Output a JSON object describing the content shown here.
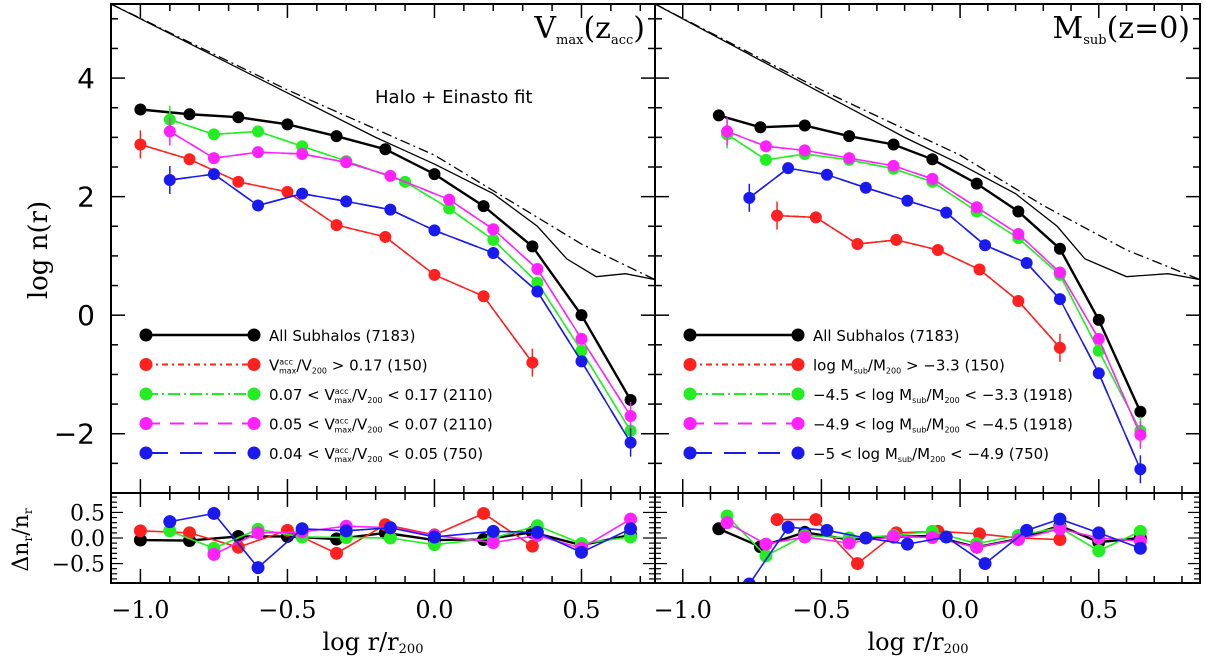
{
  "chart_data": [
    {
      "type": "line",
      "panel": "left-main",
      "title": "V_max(z_acc)",
      "annotation": "Halo + Einasto fit",
      "xlabel": "log r/r_200",
      "ylabel": "log n(r)",
      "xlim": [
        -1.1,
        0.75
      ],
      "ylim": [
        -3.0,
        5.25
      ],
      "yticks": [
        -2,
        0,
        2,
        4
      ],
      "xticks": [
        -1.0,
        -0.5,
        0.0,
        0.5
      ],
      "halo": {
        "x": [
          -1.1,
          -0.8,
          -0.5,
          -0.2,
          0.0,
          0.2,
          0.35,
          0.45,
          0.55,
          0.65,
          0.75
        ],
        "y": [
          5.25,
          4.5,
          3.75,
          3.0,
          2.55,
          2.05,
          1.5,
          0.95,
          0.65,
          0.7,
          0.6
        ]
      },
      "einasto": {
        "x": [
          -1.1,
          -0.5,
          0.0,
          0.3,
          0.5,
          0.75
        ],
        "y": [
          5.25,
          3.8,
          2.7,
          1.8,
          1.2,
          0.6
        ]
      },
      "series": [
        {
          "name": "All Subhalos (7183)",
          "color": "#000000",
          "dash": "solid",
          "x": [
            -1.0,
            -0.833,
            -0.667,
            -0.5,
            -0.333,
            -0.167,
            0.0,
            0.167,
            0.333,
            0.5,
            0.667
          ],
          "y": [
            3.47,
            3.39,
            3.34,
            3.22,
            3.02,
            2.8,
            2.38,
            1.84,
            1.16,
            0.0,
            -1.43
          ]
        },
        {
          "name": "V_max^acc/V_200 > 0.17 (150)",
          "color": "#ff2020",
          "dash": "6,4,2,4",
          "x": [
            -1.0,
            -0.833,
            -0.667,
            -0.5,
            -0.333,
            -0.167,
            0.0,
            0.167,
            0.333
          ],
          "y": [
            2.88,
            2.63,
            2.25,
            2.08,
            1.52,
            1.32,
            0.68,
            0.32,
            -0.8
          ]
        },
        {
          "name": "0.07 < V_max^acc/V_200 < 0.17 (2110)",
          "color": "#22ee22",
          "dash": "12,4,2,4",
          "x": [
            -0.9,
            -0.75,
            -0.6,
            -0.45,
            -0.3,
            -0.1,
            0.05,
            0.2,
            0.35,
            0.5,
            0.667
          ],
          "y": [
            3.3,
            3.05,
            3.1,
            2.85,
            2.6,
            2.25,
            1.8,
            1.27,
            0.55,
            -0.6,
            -1.95
          ]
        },
        {
          "name": "0.05 < V_max^acc/V_200 < 0.07 (2110)",
          "color": "#ff22ff",
          "dash": "14,10",
          "x": [
            -0.9,
            -0.75,
            -0.6,
            -0.45,
            -0.3,
            -0.15,
            0.05,
            0.2,
            0.35,
            0.5,
            0.667
          ],
          "y": [
            3.1,
            2.65,
            2.75,
            2.72,
            2.58,
            2.35,
            1.95,
            1.45,
            0.78,
            -0.4,
            -1.7
          ]
        },
        {
          "name": "0.04 < V_max^acc/V_200 < 0.05 (750)",
          "color": "#1a1aee",
          "dash": "22,12",
          "x": [
            -0.9,
            -0.75,
            -0.6,
            -0.45,
            -0.3,
            -0.15,
            0.0,
            0.2,
            0.35,
            0.5,
            0.667
          ],
          "y": [
            2.28,
            2.38,
            1.85,
            2.05,
            1.92,
            1.78,
            1.43,
            1.05,
            0.4,
            -0.78,
            -2.15
          ]
        }
      ],
      "legend": [
        "All Subhalos (7183)",
        "V_max^acc/V_200 > 0.17 (150)",
        "0.07 < V_max^acc/V_200 < 0.17 (2110)",
        "0.05 < V_max^acc/V_200 < 0.07 (2110)",
        "0.04 < V_max^acc/V_200 < 0.05 (750)"
      ],
      "legend_position": "bottom-left"
    },
    {
      "type": "line",
      "panel": "right-main",
      "title": "M_sub(z=0)",
      "xlabel": "log r/r_200",
      "xlim": [
        -1.1,
        0.865
      ],
      "ylim": [
        -3.0,
        5.25
      ],
      "xticks": [
        -1.0,
        -0.5,
        0.0,
        0.5
      ],
      "halo": {
        "x": [
          -1.1,
          -0.8,
          -0.5,
          -0.2,
          0.0,
          0.2,
          0.35,
          0.45,
          0.6,
          0.75,
          0.865
        ],
        "y": [
          5.25,
          4.5,
          3.75,
          3.0,
          2.55,
          2.05,
          1.5,
          0.95,
          0.65,
          0.7,
          0.6
        ]
      },
      "einasto": {
        "x": [
          -1.1,
          -0.5,
          0.0,
          0.3,
          0.6,
          0.865
        ],
        "y": [
          5.25,
          3.8,
          2.7,
          1.85,
          1.1,
          0.6
        ]
      },
      "series": [
        {
          "name": "All Subhalos (7183)",
          "color": "#000000",
          "dash": "solid",
          "x": [
            -0.87,
            -0.72,
            -0.56,
            -0.4,
            -0.24,
            -0.1,
            0.06,
            0.21,
            0.36,
            0.5,
            0.65
          ],
          "y": [
            3.37,
            3.17,
            3.2,
            3.02,
            2.88,
            2.63,
            2.22,
            1.75,
            1.12,
            -0.08,
            -1.63
          ]
        },
        {
          "name": "log M_sub/M_200 > -3.3 (150)",
          "color": "#ff2020",
          "dash": "6,4,2,4",
          "x": [
            -0.66,
            -0.52,
            -0.37,
            -0.23,
            -0.08,
            0.07,
            0.21,
            0.36
          ],
          "y": [
            1.68,
            1.65,
            1.2,
            1.27,
            1.1,
            0.77,
            0.24,
            -0.55
          ]
        },
        {
          "name": "-4.5 < log M_sub/M_200 < -3.3 (1918)",
          "color": "#22ee22",
          "dash": "12,4,2,4",
          "x": [
            -0.84,
            -0.7,
            -0.56,
            -0.4,
            -0.24,
            -0.1,
            0.06,
            0.21,
            0.36,
            0.5,
            0.65
          ],
          "y": [
            3.05,
            2.62,
            2.72,
            2.62,
            2.47,
            2.25,
            1.75,
            1.3,
            0.68,
            -0.6,
            -1.95
          ]
        },
        {
          "name": "-4.9 < log M_sub/M_200 < -4.5 (1918)",
          "color": "#ff22ff",
          "dash": "14,10",
          "x": [
            -0.84,
            -0.7,
            -0.56,
            -0.4,
            -0.24,
            -0.1,
            0.06,
            0.21,
            0.36,
            0.5,
            0.65
          ],
          "y": [
            3.1,
            2.85,
            2.78,
            2.65,
            2.52,
            2.3,
            1.82,
            1.37,
            0.72,
            -0.4,
            -2.02
          ]
        },
        {
          "name": "-5 < log M_sub/M_200 < -4.9 (750)",
          "color": "#1a1aee",
          "dash": "22,12",
          "x": [
            -0.76,
            -0.62,
            -0.48,
            -0.34,
            -0.19,
            -0.05,
            0.09,
            0.24,
            0.36,
            0.5,
            0.65
          ],
          "y": [
            1.98,
            2.48,
            2.37,
            2.15,
            1.93,
            1.73,
            1.18,
            0.88,
            0.27,
            -0.98,
            -2.6
          ]
        }
      ],
      "legend": [
        "All Subhalos (7183)",
        "log M_sub/M_200 > -3.3 (150)",
        "-4.5 < log M_sub/M_200 < -3.3 (1918)",
        "-4.9 < log M_sub/M_200 < -4.5 (1918)",
        "-5 < log M_sub/M_200 < -4.9 (750)"
      ],
      "legend_position": "bottom-left"
    },
    {
      "type": "line",
      "panel": "left-residual",
      "ylabel": "Δn_r/n_r",
      "xlim": [
        -1.1,
        0.75
      ],
      "ylim": [
        -0.88,
        0.88
      ],
      "yticks": [
        -0.5,
        0.0,
        0.5
      ],
      "series": [
        {
          "color": "#000000",
          "x": [
            -1.0,
            -0.833,
            -0.667,
            -0.5,
            -0.333,
            -0.167,
            0.0,
            0.167,
            0.333,
            0.5,
            0.667
          ],
          "y": [
            -0.04,
            -0.05,
            0.03,
            0.03,
            -0.02,
            0.1,
            -0.04,
            -0.03,
            0.11,
            -0.14,
            0.06
          ]
        },
        {
          "color": "#ff2020",
          "x": [
            -1.0,
            -0.833,
            -0.667,
            -0.5,
            -0.333,
            -0.167,
            0.0,
            0.167,
            0.333
          ],
          "y": [
            0.14,
            0.1,
            -0.18,
            0.15,
            -0.3,
            0.26,
            0.06,
            0.48,
            -0.16
          ]
        },
        {
          "color": "#22ee22",
          "x": [
            -0.9,
            -0.75,
            -0.6,
            -0.45,
            -0.3,
            -0.15,
            0.0,
            0.2,
            0.35,
            0.5,
            0.667
          ],
          "y": [
            0.14,
            -0.2,
            0.17,
            0.02,
            0.01,
            0.0,
            -0.13,
            0.0,
            0.24,
            -0.11,
            0.02
          ]
        },
        {
          "color": "#ff22ff",
          "x": [
            -0.75,
            -0.6,
            -0.45,
            -0.3,
            -0.15,
            0.0,
            0.2,
            0.35,
            0.5,
            0.667
          ],
          "y": [
            -0.32,
            0.1,
            0.12,
            0.23,
            0.2,
            0.05,
            -0.09,
            0.05,
            -0.2,
            0.37
          ]
        },
        {
          "color": "#1a1aee",
          "x": [
            -0.9,
            -0.75,
            -0.6,
            -0.45,
            -0.3,
            -0.15,
            0.0,
            0.2,
            0.35,
            0.5,
            0.667
          ],
          "y": [
            0.32,
            0.48,
            -0.58,
            0.18,
            0.14,
            0.2,
            0.02,
            0.13,
            0.11,
            -0.28,
            0.18
          ]
        }
      ]
    },
    {
      "type": "line",
      "panel": "right-residual",
      "xlim": [
        -1.1,
        0.865
      ],
      "ylim": [
        -0.88,
        0.88
      ],
      "series": [
        {
          "color": "#000000",
          "x": [
            -0.87,
            -0.72,
            -0.56,
            -0.4,
            -0.24,
            -0.1,
            0.06,
            0.21,
            0.36,
            0.5,
            0.65
          ],
          "y": [
            0.18,
            -0.17,
            0.11,
            -0.03,
            0.02,
            0.04,
            -0.18,
            -0.02,
            0.24,
            -0.08,
            0.0
          ]
        },
        {
          "color": "#ff2020",
          "x": [
            -0.66,
            -0.52,
            -0.37,
            -0.23,
            -0.08,
            0.07,
            0.21,
            0.36
          ],
          "y": [
            0.36,
            0.36,
            -0.5,
            0.1,
            0.13,
            0.08,
            0.0,
            -0.03
          ]
        },
        {
          "color": "#22ee22",
          "x": [
            -0.84,
            -0.7,
            -0.56,
            -0.4,
            -0.24,
            -0.1,
            0.06,
            0.21,
            0.36,
            0.5,
            0.65
          ],
          "y": [
            0.43,
            -0.35,
            0.05,
            0.0,
            0.05,
            0.13,
            -0.11,
            0.05,
            0.2,
            -0.25,
            0.13
          ]
        },
        {
          "color": "#ff22ff",
          "x": [
            -0.84,
            -0.7,
            -0.56,
            -0.4,
            -0.24,
            -0.1,
            0.06,
            0.21,
            0.36,
            0.5,
            0.65
          ],
          "y": [
            0.3,
            -0.12,
            0.02,
            -0.1,
            0.03,
            0.01,
            -0.18,
            -0.03,
            0.18,
            0.0,
            -0.06
          ]
        },
        {
          "color": "#1a1aee",
          "x": [
            -0.76,
            -0.62,
            -0.48,
            -0.34,
            -0.19,
            -0.05,
            0.09,
            0.24,
            0.36,
            0.5,
            0.65
          ],
          "y": [
            -0.9,
            0.21,
            0.15,
            0.0,
            -0.12,
            0.02,
            -0.5,
            0.15,
            0.37,
            0.1,
            -0.2
          ]
        }
      ]
    }
  ],
  "labels": {
    "left_title_main": "V",
    "left_title_sub": "max",
    "left_title_paren": "(z",
    "left_title_paren_sub": "acc",
    "left_title_close": ")",
    "right_title_main": "M",
    "right_title_sub": "sub",
    "right_title_rest": "(z=0)",
    "annotation": "Halo + Einasto fit",
    "ylabel_main": "log n(r)",
    "ylabel_resid": "Δn",
    "ylabel_resid_sub": "r",
    "ylabel_resid_rest": "/n",
    "xlabel_main": "log r/r",
    "xlabel_sub": "200",
    "left_legend": [
      {
        "pre": "All Subhalos (7183)",
        "kind": "plain"
      },
      {
        "pre": "",
        "sup": "acc",
        "sub": "max",
        "mid": "/V",
        "sub2": "200",
        "post": " > 0.17 (150)",
        "kind": "v"
      },
      {
        "pre": "0.07 < ",
        "sup": "acc",
        "sub": "max",
        "mid": "/V",
        "sub2": "200",
        "post": " < 0.17 (2110)",
        "kind": "v"
      },
      {
        "pre": "0.05 < ",
        "sup": "acc",
        "sub": "max",
        "mid": "/V",
        "sub2": "200",
        "post": " < 0.07 (2110)",
        "kind": "v"
      },
      {
        "pre": "0.04 < ",
        "sup": "acc",
        "sub": "max",
        "mid": "/V",
        "sub2": "200",
        "post": " < 0.05 (750)",
        "kind": "v"
      }
    ],
    "right_legend": [
      {
        "pre": "All Subhalos (7183)",
        "kind": "plain"
      },
      {
        "pre": "log M",
        "sub": "sub",
        "mid": "/M",
        "sub2": "200",
        "post": " > −3.3 (150)",
        "kind": "m"
      },
      {
        "pre": "−4.5 < log M",
        "sub": "sub",
        "mid": "/M",
        "sub2": "200",
        "post": " < −3.3 (1918)",
        "kind": "m"
      },
      {
        "pre": "−4.9 < log M",
        "sub": "sub",
        "mid": "/M",
        "sub2": "200",
        "post": " < −4.5 (1918)",
        "kind": "m"
      },
      {
        "pre": "−5 < log M",
        "sub": "sub",
        "mid": "/M",
        "sub2": "200",
        "post": " < −4.9 (750)",
        "kind": "m"
      }
    ],
    "ytick_labels": [
      "−2",
      "0",
      "2",
      "4"
    ],
    "resid_ytick_labels": [
      "−0.5",
      "0.0",
      "0.5"
    ],
    "xtick_labels": [
      "−1.0",
      "−0.5",
      "0.0",
      "0.5"
    ]
  }
}
